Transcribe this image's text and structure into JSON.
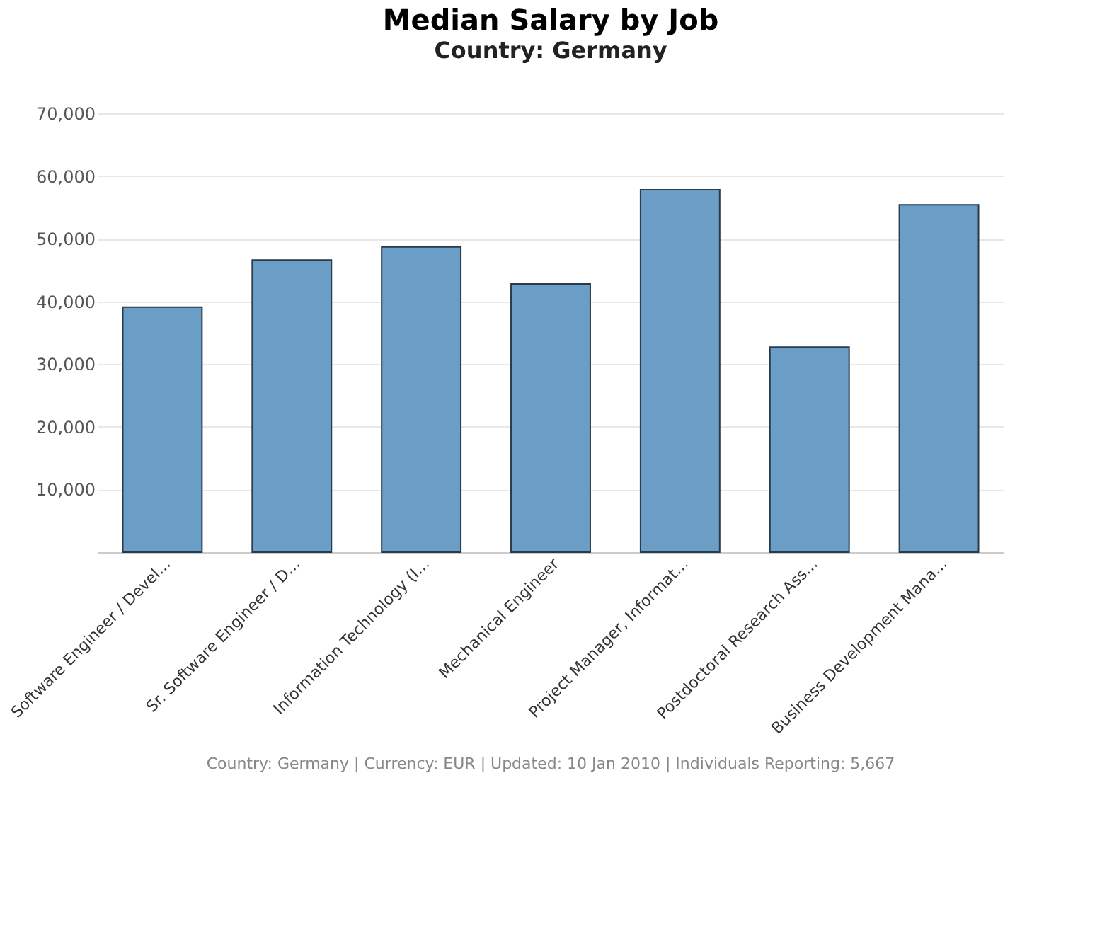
{
  "chart_data": {
    "type": "bar",
    "title": "Median Salary by Job",
    "subtitle": "Country: Germany",
    "categories": [
      "Software Engineer / Devel...",
      "Sr. Software Engineer / D...",
      "Information Technology (I...",
      "Mechanical Engineer",
      "Project Manager, Informat...",
      "Postdoctoral Research Ass...",
      "Business Development Mana..."
    ],
    "values": [
      39100,
      46600,
      48700,
      42800,
      57800,
      32700,
      55400
    ],
    "color": "#6a9ec7",
    "ylim": [
      0,
      70000
    ],
    "yticks": [
      {
        "value": 10000,
        "label": "10,000"
      },
      {
        "value": 20000,
        "label": "20,000"
      },
      {
        "value": 30000,
        "label": "30,000"
      },
      {
        "value": 40000,
        "label": "40,000"
      },
      {
        "value": 50000,
        "label": "50,000"
      },
      {
        "value": 60000,
        "label": "60,000"
      },
      {
        "value": 70000,
        "label": "70,000"
      }
    ],
    "grid": "y",
    "annotations": [
      "Country: Germany | Currency: EUR | Updated: 10 Jan 2010 | Individuals Reporting: 5,667"
    ]
  }
}
